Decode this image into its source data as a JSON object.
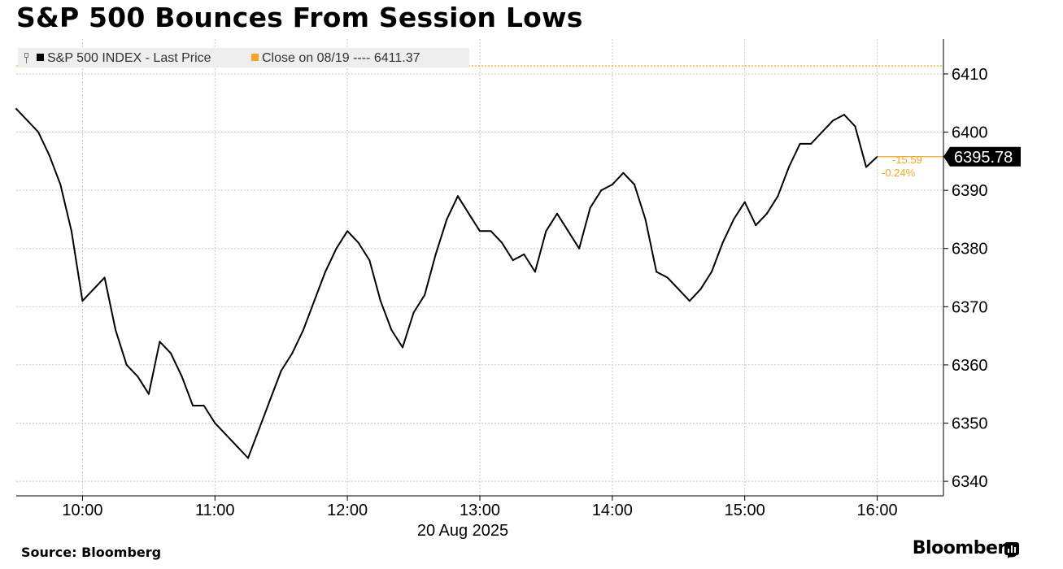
{
  "title": "S&P 500 Bounces From Session Lows",
  "source_label": "Source: Bloomberg",
  "brand": "Bloomberg",
  "colors": {
    "price_line": "#000000",
    "close_ref": "#f5a623",
    "grid": "#c8c8c8",
    "badge_bg": "#000000",
    "badge_text": "#ffffff",
    "legend_bg": "#eeeeee"
  },
  "chart_data": {
    "type": "line",
    "date_label": "20 Aug 2025",
    "x_ticks": [
      "10:00",
      "11:00",
      "12:00",
      "13:00",
      "14:00",
      "15:00",
      "16:00"
    ],
    "y_ticks": [
      6340,
      6350,
      6360,
      6370,
      6380,
      6390,
      6400,
      6410
    ],
    "ylim": [
      6337.5,
      6416
    ],
    "xlim": [
      "09:30",
      "16:30"
    ],
    "y_axis_position": "right",
    "grid": true,
    "legend_position": "top-left",
    "series": [
      {
        "name": "S&P 500 INDEX - Last Price",
        "x": [
          "09:30",
          "09:35",
          "09:40",
          "09:45",
          "09:50",
          "09:55",
          "10:00",
          "10:05",
          "10:10",
          "10:15",
          "10:20",
          "10:25",
          "10:30",
          "10:35",
          "10:40",
          "10:45",
          "10:50",
          "10:55",
          "11:00",
          "11:05",
          "11:10",
          "11:15",
          "11:20",
          "11:25",
          "11:30",
          "11:35",
          "11:40",
          "11:45",
          "11:50",
          "11:55",
          "12:00",
          "12:05",
          "12:10",
          "12:15",
          "12:20",
          "12:25",
          "12:30",
          "12:35",
          "12:40",
          "12:45",
          "12:50",
          "12:55",
          "13:00",
          "13:05",
          "13:10",
          "13:15",
          "13:20",
          "13:25",
          "13:30",
          "13:35",
          "13:40",
          "13:45",
          "13:50",
          "13:55",
          "14:00",
          "14:05",
          "14:10",
          "14:15",
          "14:20",
          "14:25",
          "14:30",
          "14:35",
          "14:40",
          "14:45",
          "14:50",
          "14:55",
          "15:00",
          "15:05",
          "15:10",
          "15:15",
          "15:20",
          "15:25",
          "15:30",
          "15:35",
          "15:40",
          "15:45",
          "15:50",
          "15:55",
          "16:00"
        ],
        "values": [
          6404,
          6402,
          6400,
          6396,
          6391,
          6383,
          6371,
          6373,
          6375,
          6366,
          6360,
          6358,
          6355,
          6364,
          6362,
          6358,
          6353,
          6353,
          6350,
          6348,
          6346,
          6344,
          6349,
          6354,
          6359,
          6362,
          6366,
          6371,
          6376,
          6380,
          6383,
          6381,
          6378,
          6371,
          6366,
          6363,
          6369,
          6372,
          6379,
          6385,
          6389,
          6386,
          6383,
          6383,
          6381,
          6378,
          6379,
          6376,
          6383,
          6386,
          6383,
          6380,
          6387,
          6390,
          6391,
          6393,
          6391,
          6385,
          6376,
          6375,
          6373,
          6371,
          6373,
          6376,
          6381,
          6385,
          6388,
          6384,
          6386,
          6389,
          6394,
          6398,
          6398,
          6400,
          6402,
          6403,
          6401,
          6394,
          6395.78
        ]
      }
    ],
    "reference_line": {
      "label": "Close on 08/19",
      "legend_text": "Close on 08/19 ---- 6411.37",
      "value": 6411.37
    },
    "last_price": 6395.78,
    "last_price_label": "6395.78",
    "change_label": "-15.59",
    "change_pct_label": "-0.24%"
  }
}
